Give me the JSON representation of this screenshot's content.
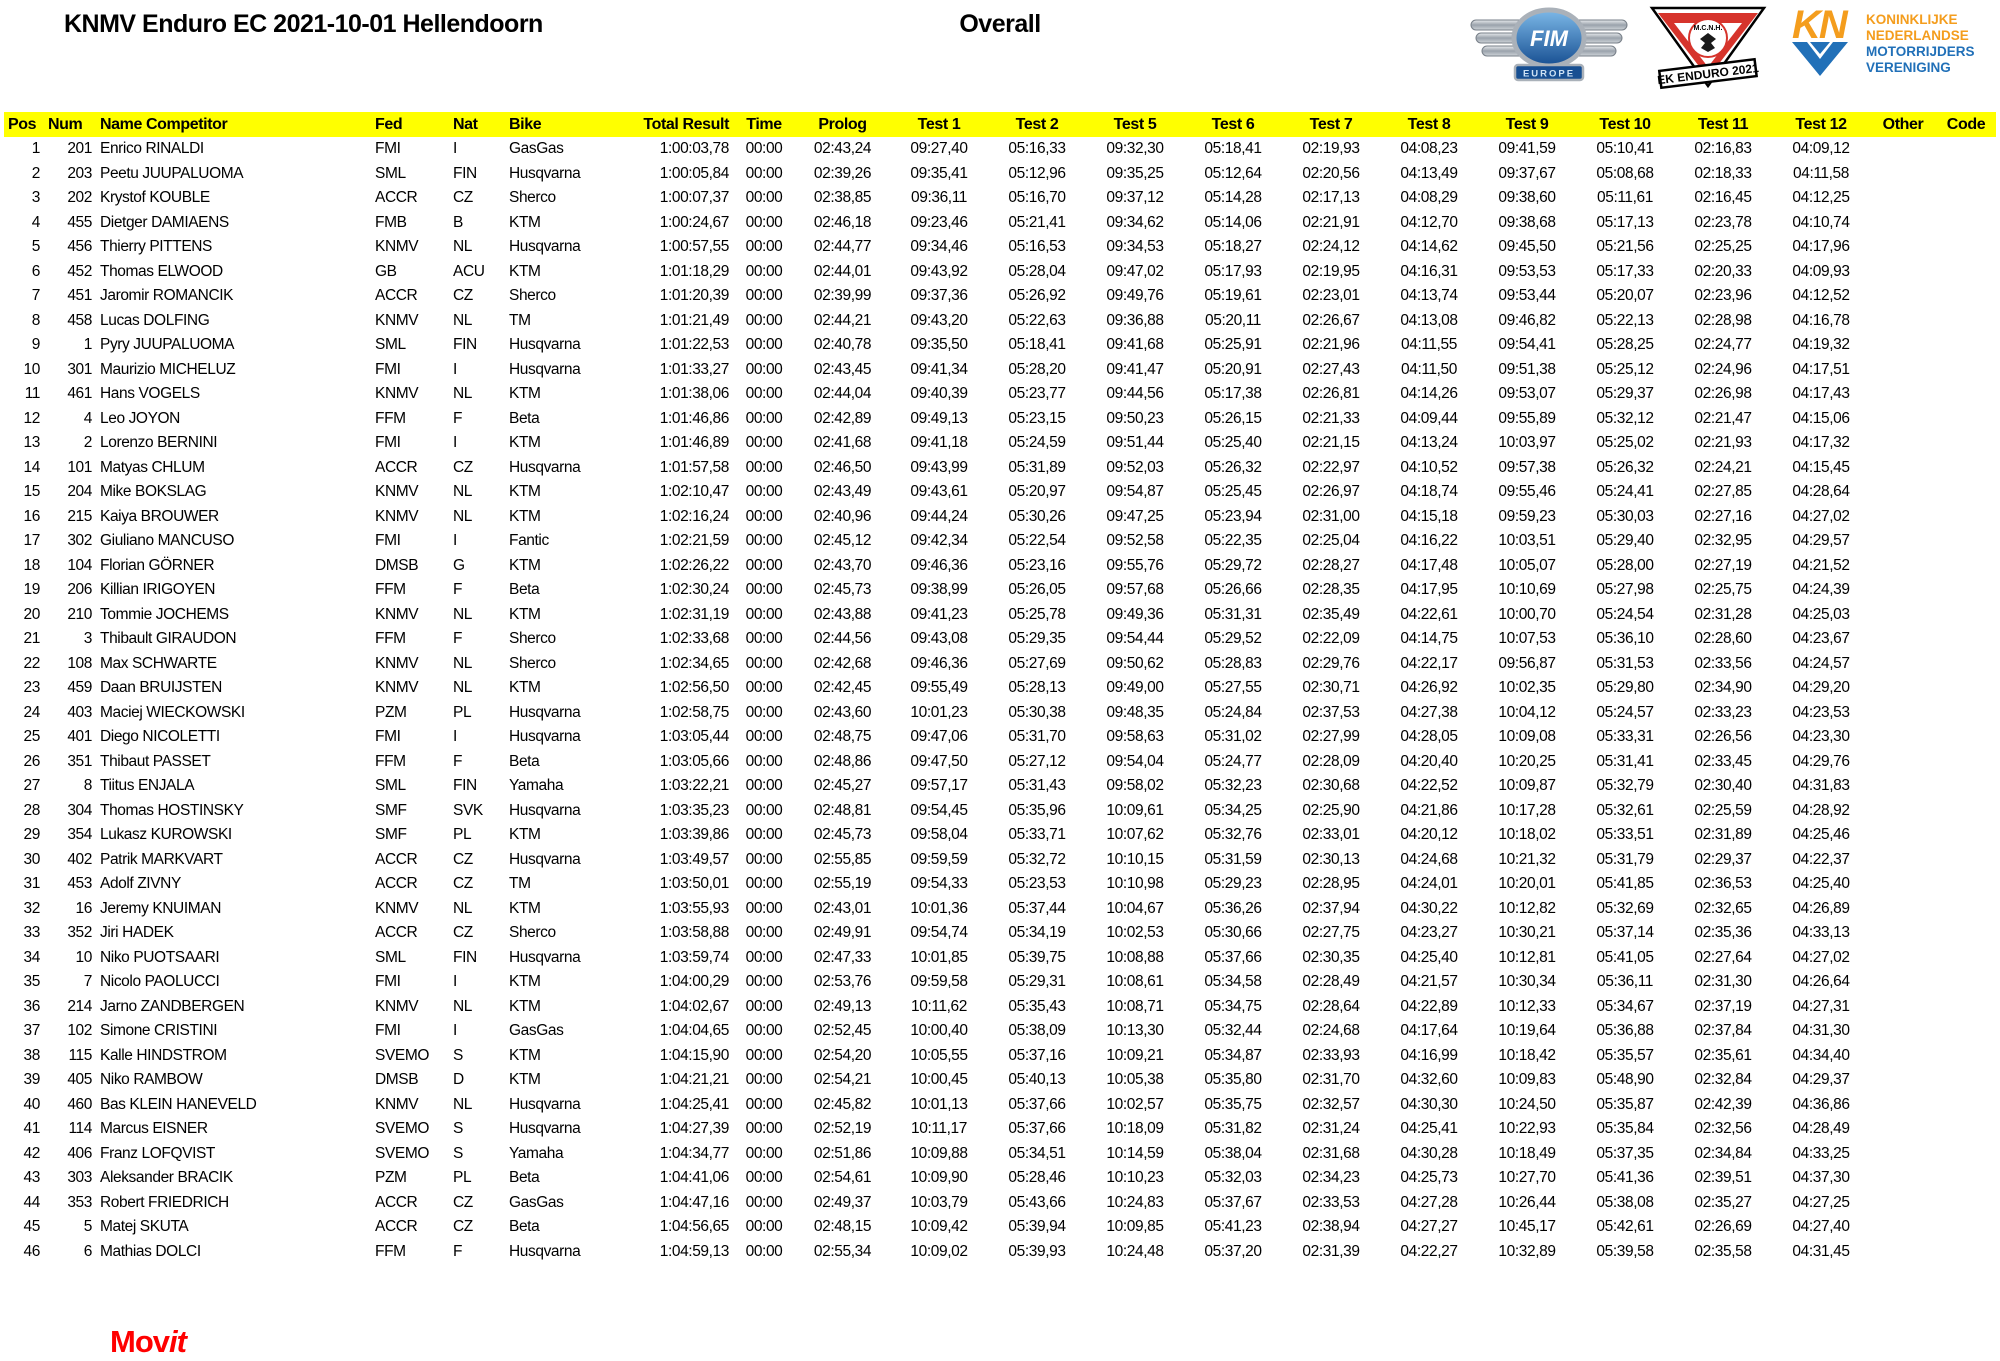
{
  "header": {
    "title": "KNMV Enduro EC 2021-10-01 Hellendoorn",
    "subtitle": "Overall",
    "logos": {
      "fim": {
        "label": "FIM",
        "banner": "EUROPE"
      },
      "accr": {
        "club": "M.C.N.H.",
        "banner": "EK ENDURO 2021"
      },
      "knmv": {
        "mark": "KN",
        "lines": [
          "KONINKLIJKE",
          "NEDERLANDSE",
          "MOTORRIJDERS",
          "VERENIGING"
        ]
      }
    }
  },
  "colors": {
    "header_bar": "#ffff00",
    "movit_red": "#ff0000",
    "knmv_orange": "#f49d1d",
    "knmv_blue": "#2170b8",
    "fim_blue": "#1c58a0",
    "accr_red": "#d6342c"
  },
  "table": {
    "columns": [
      "Pos",
      "Num",
      "Name Competitor",
      "Fed",
      "Nat",
      "Bike",
      "Total Result",
      "Time",
      "Prolog",
      "Test 1",
      "Test 2",
      "Test 5",
      "Test 6",
      "Test 7",
      "Test 8",
      "Test 9",
      "Test 10",
      "Test 11",
      "Test 12",
      "Other",
      "Code"
    ],
    "rows": [
      [
        "1",
        "201",
        "Enrico RINALDI",
        "FMI",
        "I",
        "GasGas",
        "1:00:03,78",
        "00:00",
        "02:43,24",
        "09:27,40",
        "05:16,33",
        "09:32,30",
        "05:18,41",
        "02:19,93",
        "04:08,23",
        "09:41,59",
        "05:10,41",
        "02:16,83",
        "04:09,12",
        "",
        ""
      ],
      [
        "2",
        "203",
        "Peetu JUUPALUOMA",
        "SML",
        "FIN",
        "Husqvarna",
        "1:00:05,84",
        "00:00",
        "02:39,26",
        "09:35,41",
        "05:12,96",
        "09:35,25",
        "05:12,64",
        "02:20,56",
        "04:13,49",
        "09:37,67",
        "05:08,68",
        "02:18,33",
        "04:11,58",
        "",
        ""
      ],
      [
        "3",
        "202",
        "Krystof KOUBLE",
        "ACCR",
        "CZ",
        "Sherco",
        "1:00:07,37",
        "00:00",
        "02:38,85",
        "09:36,11",
        "05:16,70",
        "09:37,12",
        "05:14,28",
        "02:17,13",
        "04:08,29",
        "09:38,60",
        "05:11,61",
        "02:16,45",
        "04:12,25",
        "",
        ""
      ],
      [
        "4",
        "455",
        "Dietger DAMIAENS",
        "FMB",
        "B",
        "KTM",
        "1:00:24,67",
        "00:00",
        "02:46,18",
        "09:23,46",
        "05:21,41",
        "09:34,62",
        "05:14,06",
        "02:21,91",
        "04:12,70",
        "09:38,68",
        "05:17,13",
        "02:23,78",
        "04:10,74",
        "",
        ""
      ],
      [
        "5",
        "456",
        "Thierry PITTENS",
        "KNMV",
        "NL",
        "Husqvarna",
        "1:00:57,55",
        "00:00",
        "02:44,77",
        "09:34,46",
        "05:16,53",
        "09:34,53",
        "05:18,27",
        "02:24,12",
        "04:14,62",
        "09:45,50",
        "05:21,56",
        "02:25,25",
        "04:17,96",
        "",
        ""
      ],
      [
        "6",
        "452",
        "Thomas ELWOOD",
        "GB",
        "ACU",
        "KTM",
        "1:01:18,29",
        "00:00",
        "02:44,01",
        "09:43,92",
        "05:28,04",
        "09:47,02",
        "05:17,93",
        "02:19,95",
        "04:16,31",
        "09:53,53",
        "05:17,33",
        "02:20,33",
        "04:09,93",
        "",
        ""
      ],
      [
        "7",
        "451",
        "Jaromir ROMANCIK",
        "ACCR",
        "CZ",
        "Sherco",
        "1:01:20,39",
        "00:00",
        "02:39,99",
        "09:37,36",
        "05:26,92",
        "09:49,76",
        "05:19,61",
        "02:23,01",
        "04:13,74",
        "09:53,44",
        "05:20,07",
        "02:23,96",
        "04:12,52",
        "",
        ""
      ],
      [
        "8",
        "458",
        "Lucas DOLFING",
        "KNMV",
        "NL",
        "TM",
        "1:01:21,49",
        "00:00",
        "02:44,21",
        "09:43,20",
        "05:22,63",
        "09:36,88",
        "05:20,11",
        "02:26,67",
        "04:13,08",
        "09:46,82",
        "05:22,13",
        "02:28,98",
        "04:16,78",
        "",
        ""
      ],
      [
        "9",
        "1",
        "Pyry JUUPALUOMA",
        "SML",
        "FIN",
        "Husqvarna",
        "1:01:22,53",
        "00:00",
        "02:40,78",
        "09:35,50",
        "05:18,41",
        "09:41,68",
        "05:25,91",
        "02:21,96",
        "04:11,55",
        "09:54,41",
        "05:28,25",
        "02:24,77",
        "04:19,32",
        "",
        ""
      ],
      [
        "10",
        "301",
        "Maurizio MICHELUZ",
        "FMI",
        "I",
        "Husqvarna",
        "1:01:33,27",
        "00:00",
        "02:43,45",
        "09:41,34",
        "05:28,20",
        "09:41,47",
        "05:20,91",
        "02:27,43",
        "04:11,50",
        "09:51,38",
        "05:25,12",
        "02:24,96",
        "04:17,51",
        "",
        ""
      ],
      [
        "11",
        "461",
        "Hans VOGELS",
        "KNMV",
        "NL",
        "KTM",
        "1:01:38,06",
        "00:00",
        "02:44,04",
        "09:40,39",
        "05:23,77",
        "09:44,56",
        "05:17,38",
        "02:26,81",
        "04:14,26",
        "09:53,07",
        "05:29,37",
        "02:26,98",
        "04:17,43",
        "",
        ""
      ],
      [
        "12",
        "4",
        "Leo JOYON",
        "FFM",
        "F",
        "Beta",
        "1:01:46,86",
        "00:00",
        "02:42,89",
        "09:49,13",
        "05:23,15",
        "09:50,23",
        "05:26,15",
        "02:21,33",
        "04:09,44",
        "09:55,89",
        "05:32,12",
        "02:21,47",
        "04:15,06",
        "",
        ""
      ],
      [
        "13",
        "2",
        "Lorenzo BERNINI",
        "FMI",
        "I",
        "KTM",
        "1:01:46,89",
        "00:00",
        "02:41,68",
        "09:41,18",
        "05:24,59",
        "09:51,44",
        "05:25,40",
        "02:21,15",
        "04:13,24",
        "10:03,97",
        "05:25,02",
        "02:21,93",
        "04:17,32",
        "",
        ""
      ],
      [
        "14",
        "101",
        "Matyas CHLUM",
        "ACCR",
        "CZ",
        "Husqvarna",
        "1:01:57,58",
        "00:00",
        "02:46,50",
        "09:43,99",
        "05:31,89",
        "09:52,03",
        "05:26,32",
        "02:22,97",
        "04:10,52",
        "09:57,38",
        "05:26,32",
        "02:24,21",
        "04:15,45",
        "",
        ""
      ],
      [
        "15",
        "204",
        "Mike BOKSLAG",
        "KNMV",
        "NL",
        "KTM",
        "1:02:10,47",
        "00:00",
        "02:43,49",
        "09:43,61",
        "05:20,97",
        "09:54,87",
        "05:25,45",
        "02:26,97",
        "04:18,74",
        "09:55,46",
        "05:24,41",
        "02:27,85",
        "04:28,64",
        "",
        ""
      ],
      [
        "16",
        "215",
        "Kaiya BROUWER",
        "KNMV",
        "NL",
        "KTM",
        "1:02:16,24",
        "00:00",
        "02:40,96",
        "09:44,24",
        "05:30,26",
        "09:47,25",
        "05:23,94",
        "02:31,00",
        "04:15,18",
        "09:59,23",
        "05:30,03",
        "02:27,16",
        "04:27,02",
        "",
        ""
      ],
      [
        "17",
        "302",
        "Giuliano MANCUSO",
        "FMI",
        "I",
        "Fantic",
        "1:02:21,59",
        "00:00",
        "02:45,12",
        "09:42,34",
        "05:22,54",
        "09:52,58",
        "05:22,35",
        "02:25,04",
        "04:16,22",
        "10:03,51",
        "05:29,40",
        "02:32,95",
        "04:29,57",
        "",
        ""
      ],
      [
        "18",
        "104",
        "Florian GÖRNER",
        "DMSB",
        "G",
        "KTM",
        "1:02:26,22",
        "00:00",
        "02:43,70",
        "09:46,36",
        "05:23,16",
        "09:55,76",
        "05:29,72",
        "02:28,27",
        "04:17,48",
        "10:05,07",
        "05:28,00",
        "02:27,19",
        "04:21,52",
        "",
        ""
      ],
      [
        "19",
        "206",
        "Killian IRIGOYEN",
        "FFM",
        "F",
        "Beta",
        "1:02:30,24",
        "00:00",
        "02:45,73",
        "09:38,99",
        "05:26,05",
        "09:57,68",
        "05:26,66",
        "02:28,35",
        "04:17,95",
        "10:10,69",
        "05:27,98",
        "02:25,75",
        "04:24,39",
        "",
        ""
      ],
      [
        "20",
        "210",
        "Tommie JOCHEMS",
        "KNMV",
        "NL",
        "KTM",
        "1:02:31,19",
        "00:00",
        "02:43,88",
        "09:41,23",
        "05:25,78",
        "09:49,36",
        "05:31,31",
        "02:35,49",
        "04:22,61",
        "10:00,70",
        "05:24,54",
        "02:31,28",
        "04:25,03",
        "",
        ""
      ],
      [
        "21",
        "3",
        "Thibault GIRAUDON",
        "FFM",
        "F",
        "Sherco",
        "1:02:33,68",
        "00:00",
        "02:44,56",
        "09:43,08",
        "05:29,35",
        "09:54,44",
        "05:29,52",
        "02:22,09",
        "04:14,75",
        "10:07,53",
        "05:36,10",
        "02:28,60",
        "04:23,67",
        "",
        ""
      ],
      [
        "22",
        "108",
        "Max SCHWARTE",
        "KNMV",
        "NL",
        "Sherco",
        "1:02:34,65",
        "00:00",
        "02:42,68",
        "09:46,36",
        "05:27,69",
        "09:50,62",
        "05:28,83",
        "02:29,76",
        "04:22,17",
        "09:56,87",
        "05:31,53",
        "02:33,56",
        "04:24,57",
        "",
        ""
      ],
      [
        "23",
        "459",
        "Daan BRUIJSTEN",
        "KNMV",
        "NL",
        "KTM",
        "1:02:56,50",
        "00:00",
        "02:42,45",
        "09:55,49",
        "05:28,13",
        "09:49,00",
        "05:27,55",
        "02:30,71",
        "04:26,92",
        "10:02,35",
        "05:29,80",
        "02:34,90",
        "04:29,20",
        "",
        ""
      ],
      [
        "24",
        "403",
        "Maciej WIECKOWSKI",
        "PZM",
        "PL",
        "Husqvarna",
        "1:02:58,75",
        "00:00",
        "02:43,60",
        "10:01,23",
        "05:30,38",
        "09:48,35",
        "05:24,84",
        "02:37,53",
        "04:27,38",
        "10:04,12",
        "05:24,57",
        "02:33,23",
        "04:23,53",
        "",
        ""
      ],
      [
        "25",
        "401",
        "Diego NICOLETTI",
        "FMI",
        "I",
        "Husqvarna",
        "1:03:05,44",
        "00:00",
        "02:48,75",
        "09:47,06",
        "05:31,70",
        "09:58,63",
        "05:31,02",
        "02:27,99",
        "04:28,05",
        "10:09,08",
        "05:33,31",
        "02:26,56",
        "04:23,30",
        "",
        ""
      ],
      [
        "26",
        "351",
        "Thibaut PASSET",
        "FFM",
        "F",
        "Beta",
        "1:03:05,66",
        "00:00",
        "02:48,86",
        "09:47,50",
        "05:27,12",
        "09:54,04",
        "05:24,77",
        "02:28,09",
        "04:20,40",
        "10:20,25",
        "05:31,41",
        "02:33,45",
        "04:29,76",
        "",
        ""
      ],
      [
        "27",
        "8",
        "Tiitus ENJALA",
        "SML",
        "FIN",
        "Yamaha",
        "1:03:22,21",
        "00:00",
        "02:45,27",
        "09:57,17",
        "05:31,43",
        "09:58,02",
        "05:32,23",
        "02:30,68",
        "04:22,52",
        "10:09,87",
        "05:32,79",
        "02:30,40",
        "04:31,83",
        "",
        ""
      ],
      [
        "28",
        "304",
        "Thomas HOSTINSKY",
        "SMF",
        "SVK",
        "Husqvarna",
        "1:03:35,23",
        "00:00",
        "02:48,81",
        "09:54,45",
        "05:35,96",
        "10:09,61",
        "05:34,25",
        "02:25,90",
        "04:21,86",
        "10:17,28",
        "05:32,61",
        "02:25,59",
        "04:28,92",
        "",
        ""
      ],
      [
        "29",
        "354",
        "Lukasz KUROWSKI",
        "SMF",
        "PL",
        "KTM",
        "1:03:39,86",
        "00:00",
        "02:45,73",
        "09:58,04",
        "05:33,71",
        "10:07,62",
        "05:32,76",
        "02:33,01",
        "04:20,12",
        "10:18,02",
        "05:33,51",
        "02:31,89",
        "04:25,46",
        "",
        ""
      ],
      [
        "30",
        "402",
        "Patrik MARKVART",
        "ACCR",
        "CZ",
        "Husqvarna",
        "1:03:49,57",
        "00:00",
        "02:55,85",
        "09:59,59",
        "05:32,72",
        "10:10,15",
        "05:31,59",
        "02:30,13",
        "04:24,68",
        "10:21,32",
        "05:31,79",
        "02:29,37",
        "04:22,37",
        "",
        ""
      ],
      [
        "31",
        "453",
        "Adolf ZIVNY",
        "ACCR",
        "CZ",
        "TM",
        "1:03:50,01",
        "00:00",
        "02:55,19",
        "09:54,33",
        "05:23,53",
        "10:10,98",
        "05:29,23",
        "02:28,95",
        "04:24,01",
        "10:20,01",
        "05:41,85",
        "02:36,53",
        "04:25,40",
        "",
        ""
      ],
      [
        "32",
        "16",
        "Jeremy KNUIMAN",
        "KNMV",
        "NL",
        "KTM",
        "1:03:55,93",
        "00:00",
        "02:43,01",
        "10:01,36",
        "05:37,44",
        "10:04,67",
        "05:36,26",
        "02:37,94",
        "04:30,22",
        "10:12,82",
        "05:32,69",
        "02:32,65",
        "04:26,89",
        "",
        ""
      ],
      [
        "33",
        "352",
        "Jiri HADEK",
        "ACCR",
        "CZ",
        "Sherco",
        "1:03:58,88",
        "00:00",
        "02:49,91",
        "09:54,74",
        "05:34,19",
        "10:02,53",
        "05:30,66",
        "02:27,75",
        "04:23,27",
        "10:30,21",
        "05:37,14",
        "02:35,36",
        "04:33,13",
        "",
        ""
      ],
      [
        "34",
        "10",
        "Niko PUOTSAARI",
        "SML",
        "FIN",
        "Husqvarna",
        "1:03:59,74",
        "00:00",
        "02:47,33",
        "10:01,85",
        "05:39,75",
        "10:08,88",
        "05:37,66",
        "02:30,35",
        "04:25,40",
        "10:12,81",
        "05:41,05",
        "02:27,64",
        "04:27,02",
        "",
        ""
      ],
      [
        "35",
        "7",
        "Nicolo PAOLUCCI",
        "FMI",
        "I",
        "KTM",
        "1:04:00,29",
        "00:00",
        "02:53,76",
        "09:59,58",
        "05:29,31",
        "10:08,61",
        "05:34,58",
        "02:28,49",
        "04:21,57",
        "10:30,34",
        "05:36,11",
        "02:31,30",
        "04:26,64",
        "",
        ""
      ],
      [
        "36",
        "214",
        "Jarno ZANDBERGEN",
        "KNMV",
        "NL",
        "KTM",
        "1:04:02,67",
        "00:00",
        "02:49,13",
        "10:11,62",
        "05:35,43",
        "10:08,71",
        "05:34,75",
        "02:28,64",
        "04:22,89",
        "10:12,33",
        "05:34,67",
        "02:37,19",
        "04:27,31",
        "",
        ""
      ],
      [
        "37",
        "102",
        "Simone CRISTINI",
        "FMI",
        "I",
        "GasGas",
        "1:04:04,65",
        "00:00",
        "02:52,45",
        "10:00,40",
        "05:38,09",
        "10:13,30",
        "05:32,44",
        "02:24,68",
        "04:17,64",
        "10:19,64",
        "05:36,88",
        "02:37,84",
        "04:31,30",
        "",
        ""
      ],
      [
        "38",
        "115",
        "Kalle HINDSTROM",
        "SVEMO",
        "S",
        "KTM",
        "1:04:15,90",
        "00:00",
        "02:54,20",
        "10:05,55",
        "05:37,16",
        "10:09,21",
        "05:34,87",
        "02:33,93",
        "04:16,99",
        "10:18,42",
        "05:35,57",
        "02:35,61",
        "04:34,40",
        "",
        ""
      ],
      [
        "39",
        "405",
        "Niko RAMBOW",
        "DMSB",
        "D",
        "KTM",
        "1:04:21,21",
        "00:00",
        "02:54,21",
        "10:00,45",
        "05:40,13",
        "10:05,38",
        "05:35,80",
        "02:31,70",
        "04:32,60",
        "10:09,83",
        "05:48,90",
        "02:32,84",
        "04:29,37",
        "",
        ""
      ],
      [
        "40",
        "460",
        "Bas KLEIN HANEVELD",
        "KNMV",
        "NL",
        "Husqvarna",
        "1:04:25,41",
        "00:00",
        "02:45,82",
        "10:01,13",
        "05:37,66",
        "10:02,57",
        "05:35,75",
        "02:32,57",
        "04:30,30",
        "10:24,50",
        "05:35,87",
        "02:42,39",
        "04:36,86",
        "",
        ""
      ],
      [
        "41",
        "114",
        "Marcus EISNER",
        "SVEMO",
        "S",
        "Husqvarna",
        "1:04:27,39",
        "00:00",
        "02:52,19",
        "10:11,17",
        "05:37,66",
        "10:18,09",
        "05:31,82",
        "02:31,24",
        "04:25,41",
        "10:22,93",
        "05:35,84",
        "02:32,56",
        "04:28,49",
        "",
        ""
      ],
      [
        "42",
        "406",
        "Franz LOFQVIST",
        "SVEMO",
        "S",
        "Yamaha",
        "1:04:34,77",
        "00:00",
        "02:51,86",
        "10:09,88",
        "05:34,51",
        "10:14,59",
        "05:38,04",
        "02:31,68",
        "04:30,28",
        "10:18,49",
        "05:37,35",
        "02:34,84",
        "04:33,25",
        "",
        ""
      ],
      [
        "43",
        "303",
        "Aleksander BRACIK",
        "PZM",
        "PL",
        "Beta",
        "1:04:41,06",
        "00:00",
        "02:54,61",
        "10:09,90",
        "05:28,46",
        "10:10,23",
        "05:32,03",
        "02:34,23",
        "04:25,73",
        "10:27,70",
        "05:41,36",
        "02:39,51",
        "04:37,30",
        "",
        ""
      ],
      [
        "44",
        "353",
        "Robert FRIEDRICH",
        "ACCR",
        "CZ",
        "GasGas",
        "1:04:47,16",
        "00:00",
        "02:49,37",
        "10:03,79",
        "05:43,66",
        "10:24,83",
        "05:37,67",
        "02:33,53",
        "04:27,28",
        "10:26,44",
        "05:38,08",
        "02:35,27",
        "04:27,25",
        "",
        ""
      ],
      [
        "45",
        "5",
        "Matej SKUTA",
        "ACCR",
        "CZ",
        "Beta",
        "1:04:56,65",
        "00:00",
        "02:48,15",
        "10:09,42",
        "05:39,94",
        "10:09,85",
        "05:41,23",
        "02:38,94",
        "04:27,27",
        "10:45,17",
        "05:42,61",
        "02:26,69",
        "04:27,40",
        "",
        ""
      ],
      [
        "46",
        "6",
        "Mathias DOLCI",
        "FFM",
        "F",
        "Husqvarna",
        "1:04:59,13",
        "00:00",
        "02:55,34",
        "10:09,02",
        "05:39,93",
        "10:24,48",
        "05:37,20",
        "02:31,39",
        "04:22,27",
        "10:32,89",
        "05:39,58",
        "02:35,58",
        "04:31,45",
        "",
        ""
      ]
    ]
  },
  "footer": {
    "brand_prefix": "Mov",
    "brand_suffix": "it"
  }
}
